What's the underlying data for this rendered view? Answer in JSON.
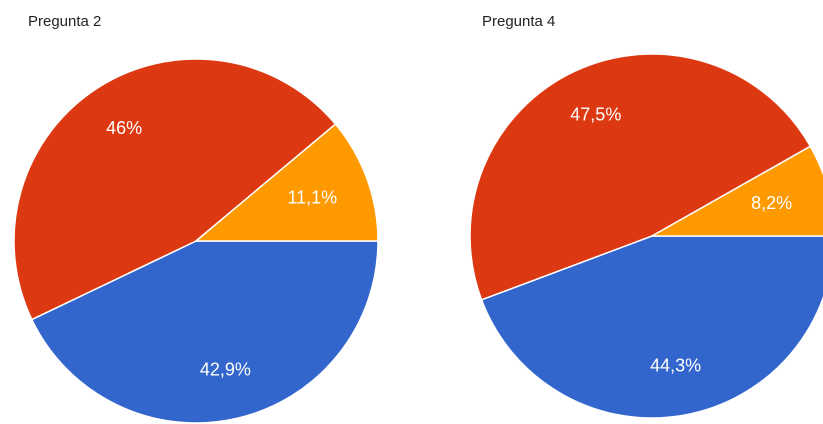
{
  "chart_data": [
    {
      "type": "pie",
      "title": "Pregunta 2",
      "values": [
        42.9,
        46,
        11.1
      ],
      "value_labels": [
        "42,9%",
        "46%",
        "11,1%"
      ],
      "colors": [
        "#3366cc",
        "#dc3912",
        "#ff9900"
      ]
    },
    {
      "type": "pie",
      "title": "Pregunta 4",
      "values": [
        44.3,
        47.5,
        8.2
      ],
      "value_labels": [
        "44,3%",
        "47,5%",
        "8,2%"
      ],
      "colors": [
        "#3366cc",
        "#dc3912",
        "#ff9900"
      ]
    }
  ]
}
